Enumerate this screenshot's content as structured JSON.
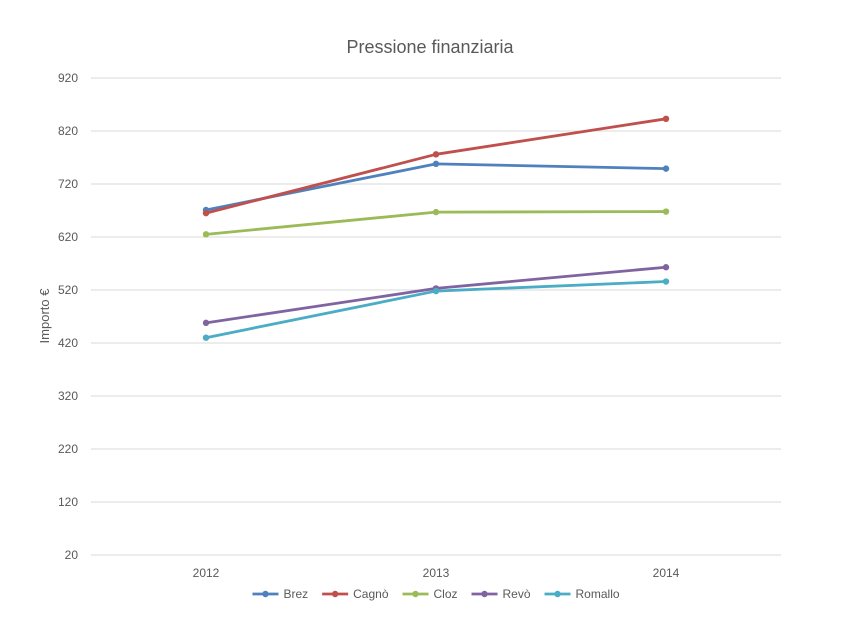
{
  "chart_data": {
    "type": "line",
    "title": "Pressione finanziaria",
    "xlabel": "",
    "ylabel": "Importo €",
    "categories": [
      "2012",
      "2013",
      "2014"
    ],
    "ylim": [
      20,
      920
    ],
    "yticks": [
      20,
      120,
      220,
      320,
      420,
      520,
      620,
      720,
      820,
      920
    ],
    "grid": true,
    "legend_position": "bottom",
    "series": [
      {
        "name": "Brez",
        "color": "#4F81BD",
        "values": [
          671,
          758,
          749
        ]
      },
      {
        "name": "Cagnò",
        "color": "#C0504D",
        "values": [
          665,
          776,
          843
        ]
      },
      {
        "name": "Cloz",
        "color": "#9BBB59",
        "values": [
          625,
          667,
          668
        ]
      },
      {
        "name": "Revò",
        "color": "#8064A2",
        "values": [
          458,
          523,
          563
        ]
      },
      {
        "name": "Romallo",
        "color": "#4BACC6",
        "values": [
          430,
          518,
          536
        ]
      }
    ]
  }
}
